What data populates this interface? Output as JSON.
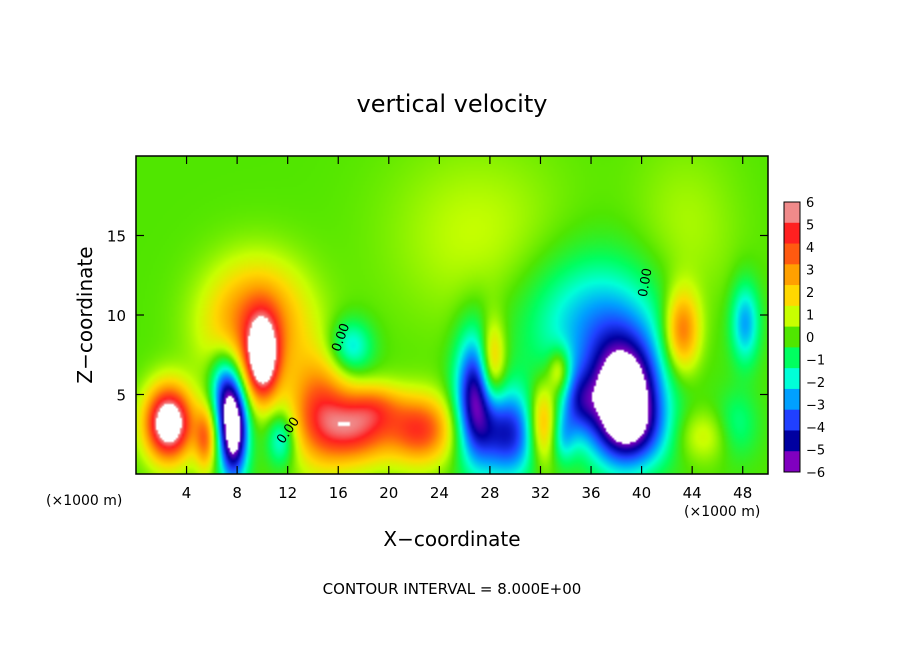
{
  "chart_data": {
    "type": "heatmap",
    "title": "vertical velocity",
    "xlabel": "X−coordinate",
    "ylabel": "Z−coordinate",
    "x_unit_left": "(×1000 m)",
    "x_unit_right": "(×1000 m)",
    "footer": "CONTOUR INTERVAL = 8.000E+00",
    "xlim": [
      0,
      50
    ],
    "ylim": [
      0,
      20
    ],
    "x_ticks": [
      4,
      8,
      12,
      16,
      20,
      24,
      28,
      32,
      36,
      40,
      44,
      48
    ],
    "x_tick_labels": [
      "4",
      "8",
      "12",
      "16",
      "20",
      "24",
      "28",
      "32",
      "36",
      "40",
      "44",
      "48"
    ],
    "y_ticks": [
      5,
      10,
      15
    ],
    "y_tick_labels": [
      "5",
      "10",
      "15"
    ],
    "colorbar": {
      "min": -6,
      "max": 6,
      "ticks": [
        6,
        5,
        4,
        3,
        2,
        1,
        0,
        -1,
        -2,
        -3,
        -4,
        -5,
        -6
      ],
      "tick_labels": [
        "6",
        "5",
        "4",
        "3",
        "2",
        "1",
        "0",
        "−1",
        "−2",
        "−3",
        "−4",
        "−5",
        "−6"
      ],
      "colors": [
        "#f08a8a",
        "#ff2020",
        "#ff5a10",
        "#ffa000",
        "#ffd800",
        "#c8ff00",
        "#50e600",
        "#00ff60",
        "#00ffd8",
        "#00a0ff",
        "#2040ff",
        "#0000a0",
        "#8000c0"
      ]
    },
    "contour_labels": [
      {
        "text": "0.00",
        "x": 16.5,
        "y": 8.5,
        "rotate": -70
      },
      {
        "text": "0.00",
        "x": 12.3,
        "y": 2.6,
        "rotate": -55
      },
      {
        "text": "0.00",
        "x": 40.6,
        "y": 12.0,
        "rotate": -80
      }
    ],
    "field_features": [
      {
        "amp": 8.0,
        "x": 2.6,
        "z": 3.2,
        "sx": 1.3,
        "sz": 1.6
      },
      {
        "amp": 6.5,
        "x": 10.0,
        "z": 7.2,
        "sx": 0.9,
        "sz": 1.8
      },
      {
        "amp": 4.0,
        "x": 9.5,
        "z": 9.5,
        "sx": 2.8,
        "sz": 2.6
      },
      {
        "amp": 3.5,
        "x": 5.5,
        "z": 2.2,
        "sx": 0.6,
        "sz": 1.4
      },
      {
        "amp": 4.0,
        "x": 14.5,
        "z": 4.0,
        "sx": 1.7,
        "sz": 2.4
      },
      {
        "amp": 4.5,
        "x": 17.5,
        "z": 2.8,
        "sx": 2.0,
        "sz": 1.5
      },
      {
        "amp": 4.5,
        "x": 22.5,
        "z": 2.8,
        "sx": 1.8,
        "sz": 1.5
      },
      {
        "amp": 2.0,
        "x": 19.0,
        "z": 4.3,
        "sx": 1.5,
        "sz": 1.0
      },
      {
        "amp": -7.5,
        "x": 7.7,
        "z": 2.8,
        "sx": 0.8,
        "sz": 2.2
      },
      {
        "amp": -3.0,
        "x": 6.9,
        "z": 5.5,
        "sx": 0.8,
        "sz": 1.6
      },
      {
        "amp": -2.5,
        "x": 11.5,
        "z": 2.2,
        "sx": 0.8,
        "sz": 1.2
      },
      {
        "amp": -2.5,
        "x": 17.0,
        "z": 8.0,
        "sx": 1.2,
        "sz": 1.2
      },
      {
        "amp": 3.5,
        "x": 28.2,
        "z": 7.0,
        "sx": 0.7,
        "sz": 1.8
      },
      {
        "amp": -5.5,
        "x": 26.8,
        "z": 4.8,
        "sx": 1.1,
        "sz": 2.8
      },
      {
        "amp": -4.5,
        "x": 29.5,
        "z": 2.5,
        "sx": 1.6,
        "sz": 2.0
      },
      {
        "amp": 3.5,
        "x": 32.2,
        "z": 3.2,
        "sx": 0.8,
        "sz": 1.8
      },
      {
        "amp": -2.0,
        "x": 33.8,
        "z": 2.3,
        "sx": 0.7,
        "sz": 1.2
      },
      {
        "amp": 2.5,
        "x": 33.5,
        "z": 6.5,
        "sx": 0.6,
        "sz": 1.0
      },
      {
        "amp": -8.0,
        "x": 38.6,
        "z": 4.6,
        "sx": 2.0,
        "sz": 2.6
      },
      {
        "amp": -3.0,
        "x": 36.5,
        "z": 9.5,
        "sx": 4.0,
        "sz": 3.0
      },
      {
        "amp": -2.5,
        "x": 35.0,
        "z": 4.5,
        "sx": 1.0,
        "sz": 1.4
      },
      {
        "amp": -1.5,
        "x": 40.0,
        "z": 2.5,
        "sx": 2.5,
        "sz": 1.5
      },
      {
        "amp": 4.0,
        "x": 43.2,
        "z": 9.0,
        "sx": 1.0,
        "sz": 1.8
      },
      {
        "amp": 1.5,
        "x": 44.8,
        "z": 2.4,
        "sx": 1.8,
        "sz": 1.2
      },
      {
        "amp": -3.0,
        "x": 48.2,
        "z": 9.5,
        "sx": 0.8,
        "sz": 1.8
      },
      {
        "amp": -1.5,
        "x": 47.5,
        "z": 3.0,
        "sx": 1.2,
        "sz": 1.5
      },
      {
        "amp": 1.0,
        "x": 27.0,
        "z": 15.0,
        "sx": 5.0,
        "sz": 4.0
      },
      {
        "amp": 0.8,
        "x": 43.5,
        "z": 15.0,
        "sx": 3.0,
        "sz": 4.0
      }
    ]
  }
}
